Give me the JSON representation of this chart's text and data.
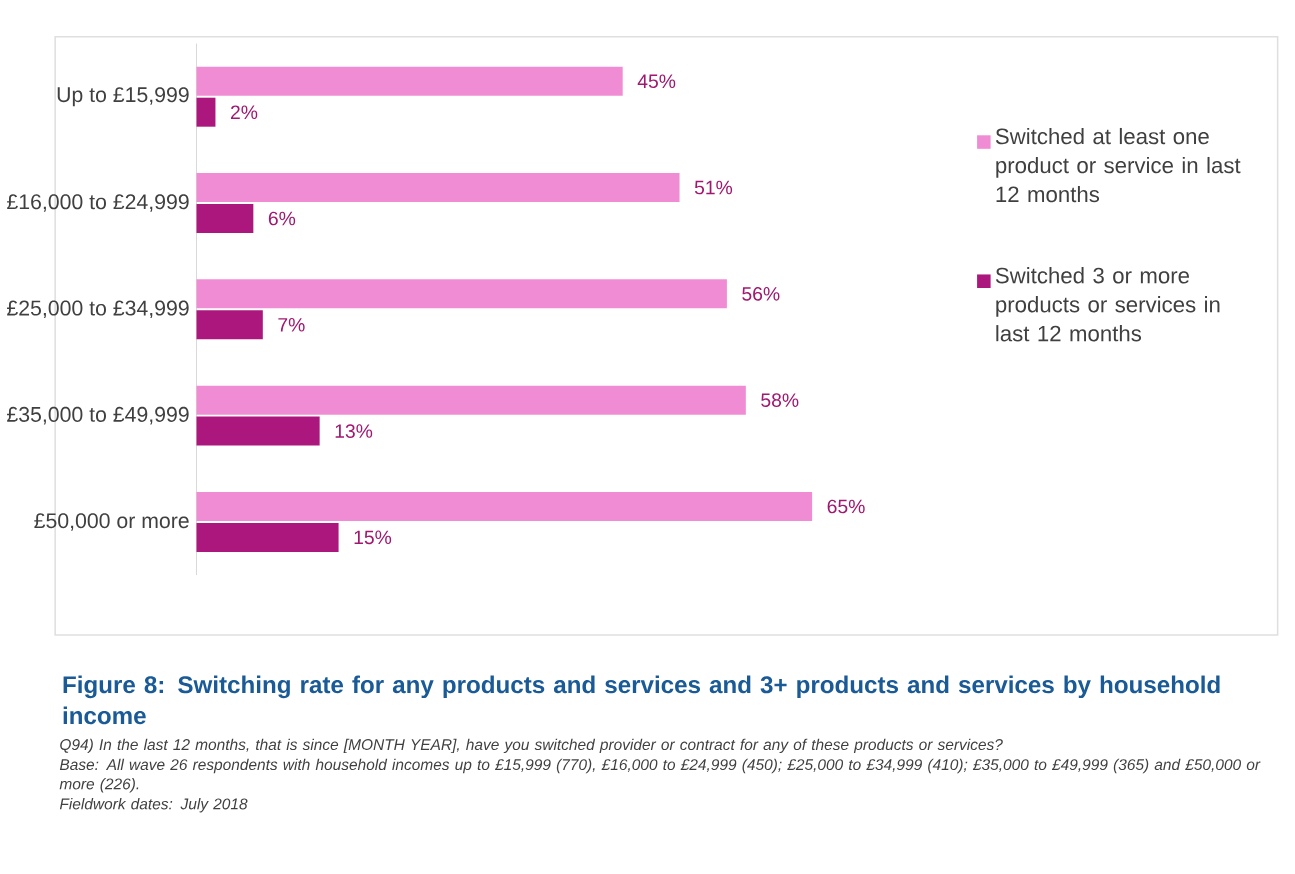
{
  "chart_data": {
    "type": "bar",
    "orientation": "horizontal",
    "title": "Figure 8: Switching rate for any products and services and 3+ products and services by household income",
    "annotations": [
      "Q94) In the last 12 months, that is since [MONTH YEAR], have you switched provider or contract for any of these products or services?",
      "Base: All wave 26 respondents with household incomes up to £15,999 (770), £16,000 to £24,999 (450); £25,000 to £34,999 (410); £35,000 to £49,999 (365) and £50,000 or more (226).",
      "Fieldwork dates: July 2018"
    ],
    "categories": [
      "Up to £15,999",
      "£16,000 to £24,999",
      "£25,000 to £34,999",
      "£35,000 to £49,999",
      "£50,000 or more"
    ],
    "series": [
      {
        "name": "Switched at least one product or service in last 12 months",
        "color": "#f08cd4",
        "values": [
          45,
          51,
          56,
          58,
          65
        ],
        "value_labels": [
          "45%",
          "51%",
          "56%",
          "58%",
          "65%"
        ]
      },
      {
        "name": "Switched 3 or more products or services in last 12 months",
        "color": "#ab177c",
        "values": [
          2,
          6,
          7,
          13,
          15
        ],
        "value_labels": [
          "2%",
          "6%",
          "7%",
          "13%",
          "15%"
        ]
      }
    ],
    "legend": "right"
  }
}
